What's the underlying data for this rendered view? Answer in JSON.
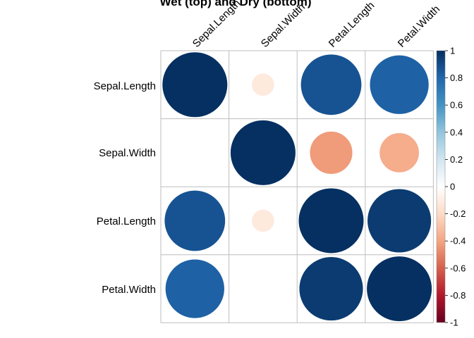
{
  "chart_data": {
    "type": "heatmap",
    "title": "Wet (top) and Dry (bottom)",
    "variables": [
      "Sepal.Length",
      "Sepal.Width",
      "Petal.Length",
      "Petal.Width"
    ],
    "matrix": [
      [
        1.0,
        -0.12,
        0.87,
        0.82
      ],
      [
        null,
        1.0,
        -0.43,
        -0.37
      ],
      [
        0.87,
        -0.12,
        1.0,
        0.96
      ],
      [
        0.82,
        null,
        0.96,
        1.0
      ]
    ],
    "colorbar": {
      "range": [
        -1,
        1
      ],
      "ticks": [
        "1",
        "0.8",
        "0.6",
        "0.4",
        "0.2",
        "0",
        "-0.2",
        "-0.4",
        "-0.6",
        "-0.8",
        "-1"
      ]
    },
    "colors": {
      "positive_max": "#053061",
      "mid": "#ffffff",
      "negative_max": "#67001f",
      "grid": "#bebebe"
    }
  }
}
